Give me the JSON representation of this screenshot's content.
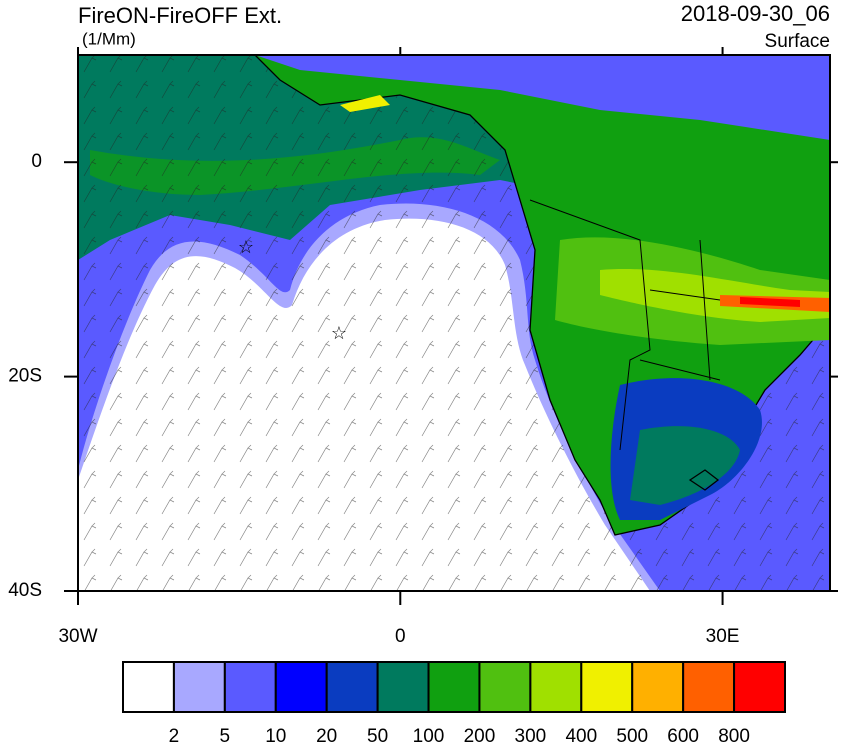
{
  "header": {
    "title": "FireON-FireOFF Ext.",
    "units": "(1/Mm)",
    "time": "2018-09-30_06",
    "level": "Surface"
  },
  "map": {
    "lonlim": [
      -30,
      40
    ],
    "latlim": [
      -40,
      10
    ],
    "lon_ticks": [
      {
        "value": -30,
        "label": "30W"
      },
      0,
      {
        "value": 30,
        "label": "30E"
      }
    ],
    "lat_ticks": [
      0,
      {
        "value": -20,
        "label": "20S"
      },
      {
        "value": -40,
        "label": "40S"
      }
    ]
  },
  "colorbar": {
    "colors": [
      "#ffffff",
      "#a8a8ff",
      "#5a5aff",
      "#0000ff",
      "#0a3cc0",
      "#007a5e",
      "#10a010",
      "#50c010",
      "#a0e000",
      "#f0f000",
      "#ffb000",
      "#ff6000",
      "#ff0000"
    ],
    "levels": [
      2,
      5,
      10,
      20,
      50,
      100,
      200,
      300,
      400,
      500,
      600,
      800
    ]
  }
}
